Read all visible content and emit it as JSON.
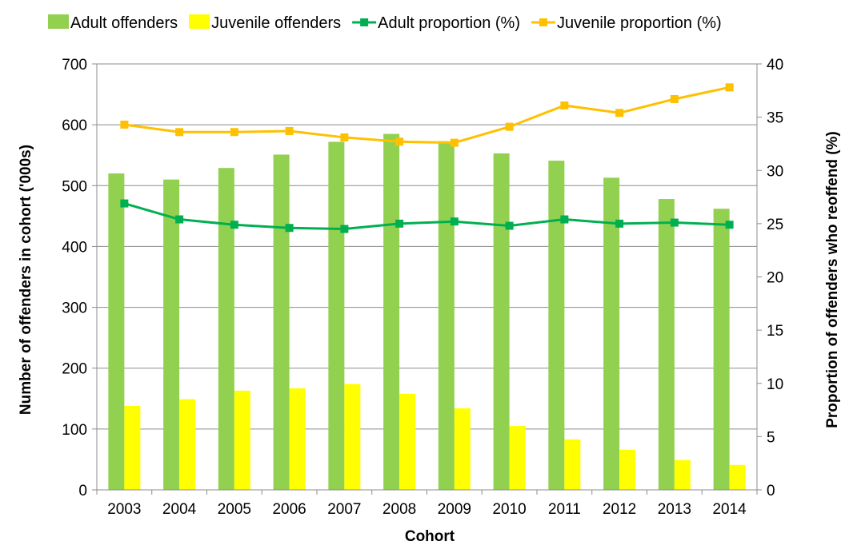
{
  "chart_data": {
    "type": "bar",
    "categories": [
      "2003",
      "2004",
      "2005",
      "2006",
      "2007",
      "2008",
      "2009",
      "2010",
      "2011",
      "2012",
      "2013",
      "2014"
    ],
    "bar_series": [
      {
        "name": "Adult offenders",
        "color": "#92D050",
        "values": [
          520,
          510,
          529,
          551,
          572,
          585,
          573,
          553,
          541,
          513,
          478,
          462
        ]
      },
      {
        "name": "Juvenile offenders",
        "color": "#FFFF00",
        "values": [
          138,
          149,
          163,
          167,
          174,
          158,
          134,
          105,
          83,
          66,
          49,
          41
        ]
      }
    ],
    "line_series": [
      {
        "name": "Adult proportion (%)",
        "color": "#00B050",
        "marker": "square",
        "values": [
          26.9,
          25.4,
          24.9,
          24.6,
          24.5,
          25.0,
          25.2,
          24.8,
          25.4,
          25.0,
          25.1,
          24.9
        ]
      },
      {
        "name": "Juvenile proportion (%)",
        "color": "#FFC000",
        "marker": "square",
        "values": [
          34.3,
          33.6,
          33.6,
          33.7,
          33.1,
          32.7,
          32.6,
          34.1,
          36.1,
          35.4,
          36.7,
          37.8
        ]
      }
    ],
    "xlabel": "Cohort",
    "ylabel": "Number of offenders in cohort ('000s)",
    "y2label": "Proportion of offenders who reoffend (%)",
    "ylim": [
      0,
      700
    ],
    "yticks": [
      0,
      100,
      200,
      300,
      400,
      500,
      600,
      700
    ],
    "y2lim": [
      0,
      40
    ],
    "y2ticks": [
      0,
      5,
      10,
      15,
      20,
      25,
      30,
      35,
      40
    ],
    "grid": true,
    "legend_position": "top"
  }
}
